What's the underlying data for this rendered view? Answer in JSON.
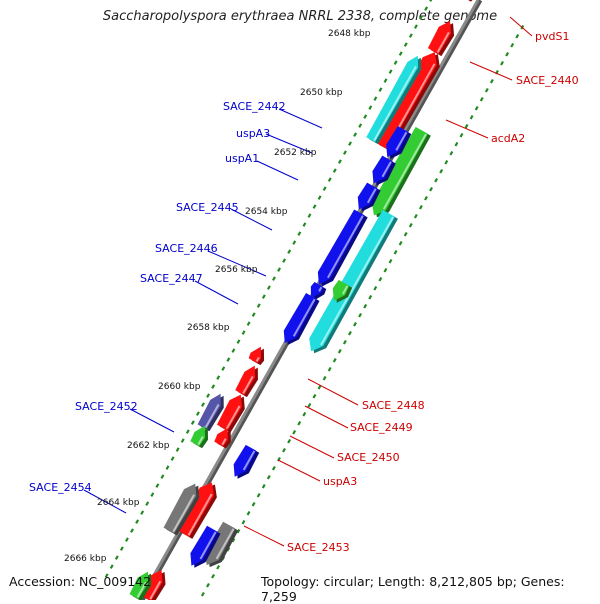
{
  "title": "Saccharopolyspora erythraea NRRL 2338, complete genome",
  "footer": {
    "accession": "Accession: NC_009142",
    "stats": "Topology: circular; Length: 8,212,805 bp; Genes: 7,259"
  },
  "colors": {
    "backbone": "#8a8a8a",
    "tick": "#1f8a1f",
    "forward_label": "#cc0000",
    "reverse_label": "#0000cc",
    "red": "#ff1111",
    "blue": "#1111ee",
    "green": "#33cc33",
    "cyan": "#22dddd",
    "gray": "#777777",
    "purple": "#5555aa"
  },
  "scale_ticks": [
    "2648 kbp",
    "2650 kbp",
    "2652 kbp",
    "2654 kbp",
    "2656 kbp",
    "2658 kbp",
    "2660 kbp",
    "2662 kbp",
    "2664 kbp",
    "2666 kbp"
  ],
  "labels_right": [
    "pvdS1",
    "SACE_2440",
    "acdA2",
    "SACE_2448",
    "SACE_2449",
    "SACE_2450",
    "uspA3",
    "SACE_2453"
  ],
  "labels_left": [
    "SACE_2442",
    "uspA3",
    "uspA1",
    "SACE_2445",
    "SACE_2446",
    "SACE_2447",
    "SACE_2452",
    "SACE_2454"
  ]
}
